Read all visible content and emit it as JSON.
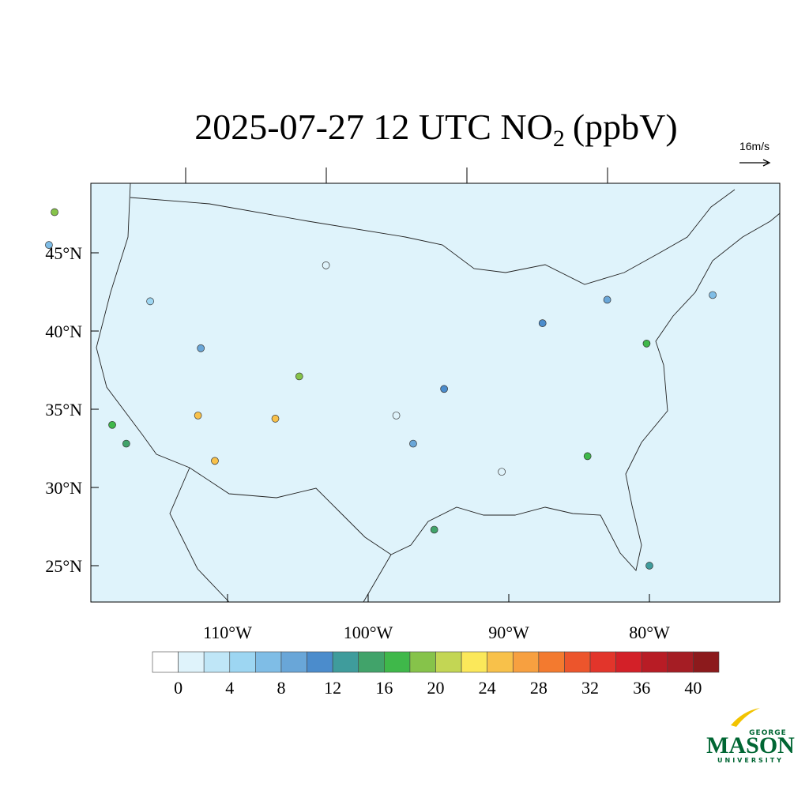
{
  "map": {
    "title": {
      "main": "2025-07-27 12 UTC NO",
      "sub": "2",
      "end": "(ppbV)"
    },
    "wind_reference": "16m/s",
    "lat_ticks": [
      {
        "value": 45,
        "label": "45°N"
      },
      {
        "value": 40,
        "label": "40°N"
      },
      {
        "value": 35,
        "label": "35°N"
      },
      {
        "value": 30,
        "label": "30°N"
      },
      {
        "value": 25,
        "label": "25°N"
      }
    ],
    "lon_ticks": [
      {
        "value": -110,
        "label": "110°W"
      },
      {
        "value": -100,
        "label": "100°W"
      },
      {
        "value": -90,
        "label": "90°W"
      },
      {
        "value": -80,
        "label": "80°W"
      }
    ],
    "colorbar": {
      "colors": [
        "#ffffff",
        "#dff3fb",
        "#bfe6f7",
        "#9dd6f2",
        "#7fbde6",
        "#69a6d8",
        "#4b8ccc",
        "#3f9c9c",
        "#41a36a",
        "#3fb84a",
        "#86c34a",
        "#c3d654",
        "#fbe85a",
        "#f8c14a",
        "#f7a040",
        "#f37a2f",
        "#ec552c",
        "#e2352b",
        "#d32028",
        "#b81c25",
        "#a51d24",
        "#8c1a1c"
      ],
      "levels": [
        0,
        2,
        4,
        6,
        8,
        10,
        12,
        14,
        16,
        18,
        20,
        22,
        24,
        26,
        28,
        30,
        32,
        34,
        36,
        38,
        40
      ],
      "ticks": [
        0,
        4,
        8,
        12,
        16,
        20,
        24,
        28,
        32,
        36,
        40
      ]
    },
    "stations": [
      {
        "lon": -122.3,
        "lat": 47.6,
        "value": 18
      },
      {
        "lon": -122.7,
        "lat": 45.5,
        "value": 6
      },
      {
        "lon": -118.2,
        "lat": 34.0,
        "value": 17
      },
      {
        "lon": -117.2,
        "lat": 32.8,
        "value": 14
      },
      {
        "lon": -112.1,
        "lat": 34.6,
        "value": 24
      },
      {
        "lon": -110.9,
        "lat": 31.7,
        "value": 24
      },
      {
        "lon": -106.6,
        "lat": 34.4,
        "value": 24
      },
      {
        "lon": -104.9,
        "lat": 37.1,
        "value": 18
      },
      {
        "lon": -111.9,
        "lat": 38.9,
        "value": 8
      },
      {
        "lon": -95.3,
        "lat": 27.3,
        "value": 14
      },
      {
        "lon": -87.6,
        "lat": 40.5,
        "value": 10
      },
      {
        "lon": -80.2,
        "lat": 39.2,
        "value": 16
      },
      {
        "lon": -84.4,
        "lat": 32.0,
        "value": 16
      },
      {
        "lon": -80.0,
        "lat": 25.0,
        "value": 12
      },
      {
        "lon": -96.8,
        "lat": 32.8,
        "value": 8
      },
      {
        "lon": -94.6,
        "lat": 36.3,
        "value": 10
      },
      {
        "lon": -83.0,
        "lat": 42.0,
        "value": 8
      },
      {
        "lon": -75.5,
        "lat": 42.3,
        "value": 6
      },
      {
        "lon": -103.0,
        "lat": 44.2,
        "value": 1
      },
      {
        "lon": -98.0,
        "lat": 34.6,
        "value": 1
      },
      {
        "lon": -90.5,
        "lat": 31.0,
        "value": 1
      },
      {
        "lon": -115.5,
        "lat": 41.9,
        "value": 4
      }
    ],
    "logo": {
      "top": "GEORGE",
      "main": "MASON",
      "bottom": "UNIVERSITY"
    }
  }
}
